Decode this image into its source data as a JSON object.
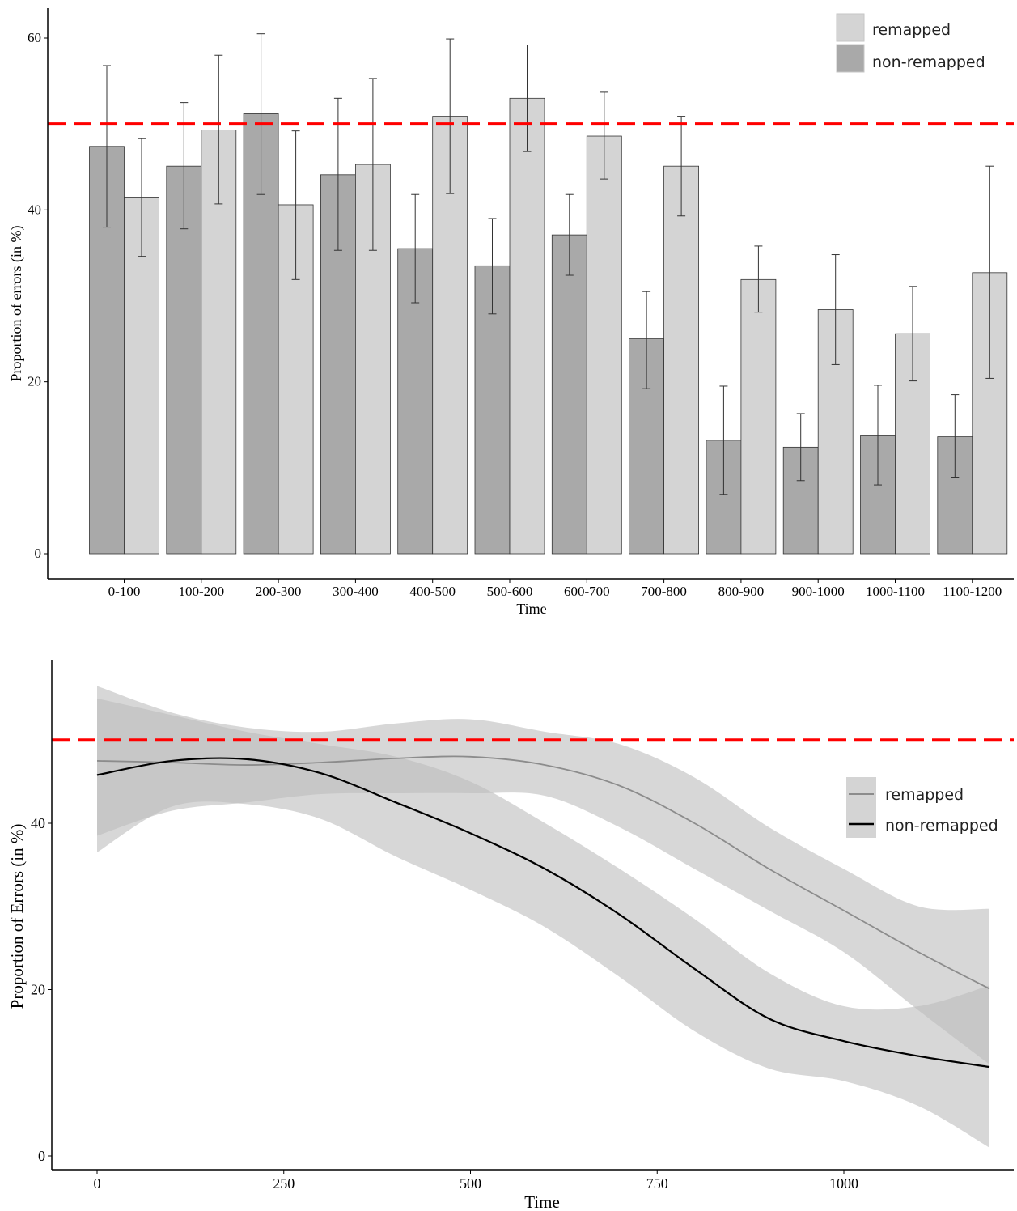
{
  "colors": {
    "non_remapped_bar": "#a9a9a9",
    "remapped_bar": "#d4d4d4",
    "bar_border": "#333333",
    "reference_line": "#ff0000",
    "ribbon": "#bdbdbd",
    "remapped_line": "#8c8c8c",
    "non_remapped_line": "#000000"
  },
  "chart_data": [
    {
      "type": "bar",
      "xlabel": "Time",
      "ylabel": "Proportion of errors (in %)",
      "ylim": [
        0,
        63
      ],
      "yticks": [
        0,
        20,
        40,
        60
      ],
      "legend_position": "top-right",
      "reference_line": 50,
      "categories": [
        "0-100",
        "100-200",
        "200-300",
        "300-400",
        "400-500",
        "500-600",
        "600-700",
        "700-800",
        "800-900",
        "900-1000",
        "1000-1100",
        "1100-1200"
      ],
      "series": [
        {
          "name": "non-remapped",
          "values": [
            47.4,
            45.1,
            51.2,
            44.1,
            35.5,
            33.5,
            37.1,
            25.0,
            13.2,
            12.4,
            13.8,
            13.6
          ],
          "error_low": [
            38.0,
            37.8,
            41.8,
            35.3,
            29.2,
            27.9,
            32.4,
            19.2,
            6.9,
            8.5,
            8.0,
            8.9
          ],
          "error_high": [
            56.8,
            52.5,
            60.5,
            53.0,
            41.8,
            39.0,
            41.8,
            30.5,
            19.5,
            16.3,
            19.6,
            18.5
          ]
        },
        {
          "name": "remapped",
          "values": [
            41.5,
            49.3,
            40.6,
            45.3,
            50.9,
            53.0,
            48.6,
            45.1,
            31.9,
            28.4,
            25.6,
            32.7
          ],
          "error_low": [
            34.6,
            40.7,
            31.9,
            35.3,
            41.9,
            46.8,
            43.6,
            39.3,
            28.1,
            22.0,
            20.1,
            20.4
          ],
          "error_high": [
            48.3,
            58.0,
            49.2,
            55.3,
            59.9,
            59.2,
            53.7,
            50.9,
            35.8,
            34.8,
            31.1,
            45.1
          ]
        }
      ]
    },
    {
      "type": "line",
      "xlabel": "Time",
      "ylabel": "Proportion of Errors (in %)",
      "xlim": [
        -30,
        1227
      ],
      "ylim": [
        -1,
        59
      ],
      "xticks": [
        0,
        250,
        500,
        750,
        1000
      ],
      "yticks": [
        0,
        20,
        40
      ],
      "legend_position": "right",
      "reference_line": 50,
      "series": [
        {
          "name": "remapped",
          "x": [
            0,
            100,
            200,
            300,
            400,
            500,
            600,
            700,
            800,
            900,
            1000,
            1100,
            1195
          ],
          "y": [
            47.5,
            47.3,
            47.0,
            47.3,
            47.8,
            48.0,
            47.0,
            44.5,
            40.0,
            34.5,
            29.5,
            24.5,
            20.1
          ],
          "lower": [
            38.5,
            41.5,
            42.5,
            43.5,
            43.6,
            43.6,
            43.3,
            39.5,
            34.5,
            29.5,
            24.5,
            17.5,
            11.0
          ],
          "upper": [
            56.5,
            53.3,
            51.5,
            51.0,
            52.0,
            52.5,
            51.0,
            49.5,
            45.5,
            39.5,
            34.5,
            30.0,
            29.7
          ]
        },
        {
          "name": "non-remapped",
          "x": [
            0,
            100,
            200,
            300,
            400,
            500,
            600,
            700,
            800,
            900,
            1000,
            1100,
            1195
          ],
          "y": [
            45.8,
            47.5,
            47.7,
            46.0,
            42.5,
            38.8,
            34.5,
            29.0,
            22.5,
            16.5,
            13.8,
            12.0,
            10.7
          ],
          "lower": [
            36.5,
            42.0,
            42.3,
            40.5,
            36.0,
            32.0,
            27.5,
            21.5,
            15.0,
            10.5,
            9.0,
            6.0,
            1.0
          ],
          "upper": [
            55.0,
            53.0,
            51.0,
            49.5,
            48.0,
            45.0,
            40.0,
            34.5,
            28.5,
            22.0,
            18.0,
            18.0,
            20.5
          ]
        }
      ]
    }
  ]
}
